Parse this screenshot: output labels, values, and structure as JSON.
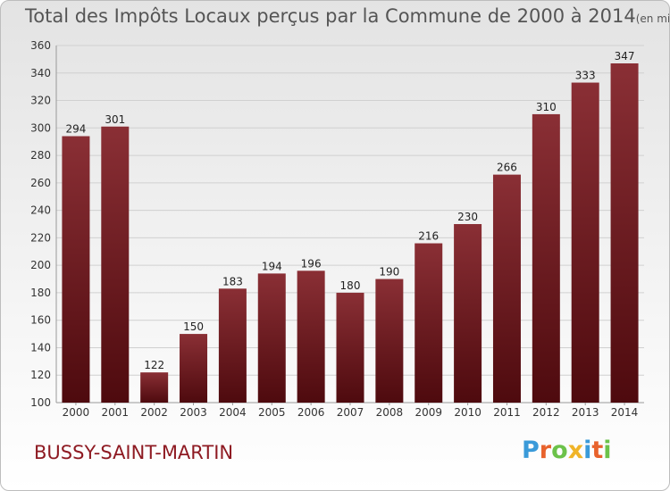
{
  "header": {
    "title": "Total des Impôts Locaux perçus par la Commune de 2000 à 2014",
    "unit_note": "(en milliers d'€)"
  },
  "commune_name": "BUSSY-SAINT-MARTIN",
  "logo": {
    "text": "Proxiti",
    "letters": [
      "P",
      "r",
      "o",
      "x",
      "i",
      "t",
      "i"
    ],
    "colors": [
      "#3a9ad9",
      "#e8622c",
      "#6cc24a",
      "#f0b428",
      "#3a9ad9",
      "#e8622c",
      "#6cc24a"
    ]
  },
  "colors": {
    "bar_top": "#8a2f35",
    "bar_bottom": "#4e0a0e",
    "grid": "#d0d0d0",
    "commune_text": "#8e1a22"
  },
  "chart_data": {
    "type": "bar",
    "title": "Total des Impôts Locaux perçus par la Commune de 2000 à 2014",
    "xlabel": "",
    "ylabel": "",
    "categories": [
      "2000",
      "2001",
      "2002",
      "2003",
      "2004",
      "2005",
      "2006",
      "2007",
      "2008",
      "2009",
      "2010",
      "2011",
      "2012",
      "2013",
      "2014"
    ],
    "values": [
      294,
      301,
      122,
      150,
      183,
      194,
      196,
      180,
      190,
      216,
      230,
      266,
      310,
      333,
      347
    ],
    "ylim": [
      100,
      360
    ],
    "yticks": [
      100,
      120,
      140,
      160,
      180,
      200,
      220,
      240,
      260,
      280,
      300,
      320,
      340,
      360
    ],
    "grid": true
  }
}
